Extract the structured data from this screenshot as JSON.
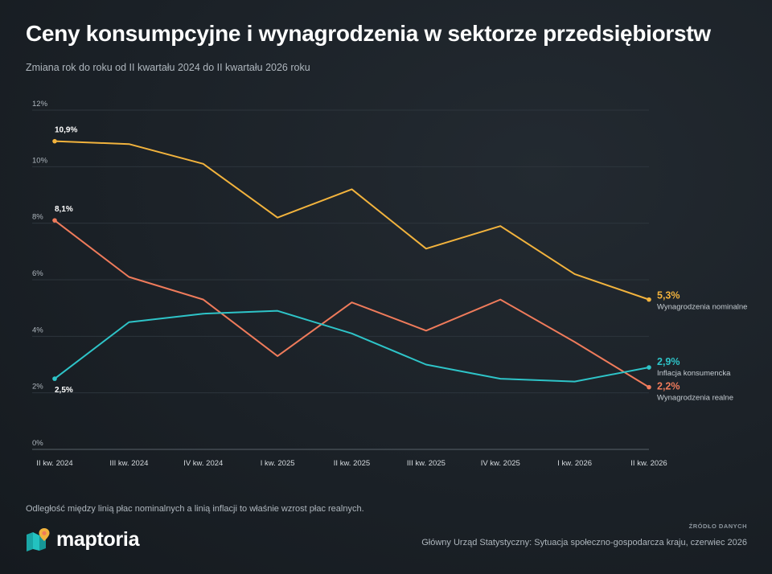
{
  "header": {
    "title": "Ceny konsumpcyjne i wynagrodzenia w sektorze przedsiębiorstw",
    "subtitle": "Zmiana rok do roku od II kwartału 2024 do II kwartału 2026 roku"
  },
  "chart_data": {
    "type": "line",
    "title": "Ceny konsumpcyjne i wynagrodzenia w sektorze przedsiębiorstw",
    "subtitle": "Zmiana rok do roku od II kwartału 2024 do II kwartału 2026 roku",
    "categories": [
      "II kw. 2024",
      "III kw. 2024",
      "IV kw. 2024",
      "I kw. 2025",
      "II kw. 2025",
      "III kw. 2025",
      "IV kw. 2025",
      "I kw. 2026",
      "II kw. 2026"
    ],
    "ylim": [
      0,
      12
    ],
    "yticks": [
      0,
      2,
      4,
      6,
      8,
      10,
      12
    ],
    "ytick_labels": [
      "0%",
      "2%",
      "4%",
      "6%",
      "8%",
      "10%",
      "12%"
    ],
    "grid": true,
    "series": [
      {
        "name": "Wynagrodzenia nominalne",
        "color": "#f2b33d",
        "values": [
          10.9,
          10.8,
          10.1,
          8.2,
          9.2,
          7.1,
          7.9,
          6.2,
          5.3
        ],
        "start_label": "10,9%",
        "end_label": "5,3%"
      },
      {
        "name": "Wynagrodzenia realne",
        "color": "#ef7b5b",
        "values": [
          8.1,
          6.1,
          5.3,
          3.3,
          5.2,
          4.2,
          5.3,
          3.8,
          2.2
        ],
        "start_label": "8,1%",
        "end_label": "2,2%"
      },
      {
        "name": "Inflacja konsumencka",
        "color": "#2ec4c8",
        "values": [
          2.5,
          4.5,
          4.8,
          4.9,
          4.1,
          3.0,
          2.5,
          2.4,
          2.9
        ],
        "start_label": "2,5%",
        "end_label": "2,9%"
      }
    ]
  },
  "footer": {
    "note": "Odległość między linią płac nominalnych a linią inflacji to właśnie wzrost płac realnych.",
    "source_label": "ŹRÓDŁO DANYCH",
    "source_text": "Główny Urząd Statystyczny: Sytuacja społeczno-gospodarcza kraju, czerwiec 2026",
    "brand": "maptoria"
  }
}
